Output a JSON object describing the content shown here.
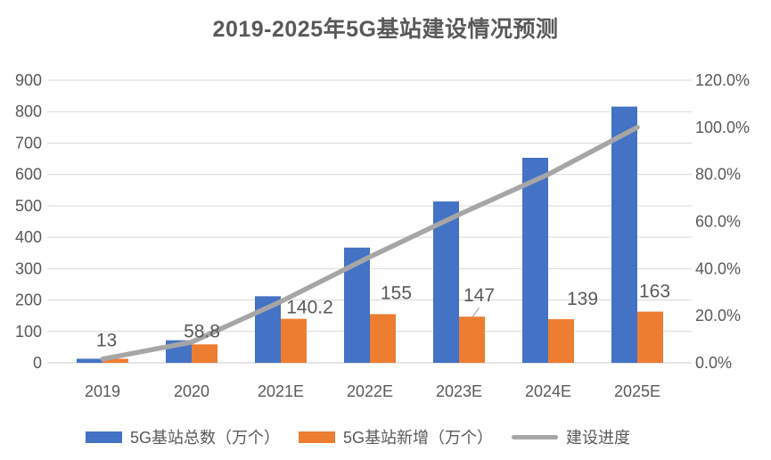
{
  "chart_data": {
    "type": "combo",
    "title": "2019-2025年5G基站建设情况预测",
    "categories": [
      "2019",
      "2020",
      "2021E",
      "2022E",
      "2023E",
      "2024E",
      "2025E"
    ],
    "series": [
      {
        "name": "5G基站总数（万个）",
        "type": "bar",
        "axis": "left",
        "color": "#4472C4",
        "values": [
          13,
          71.8,
          212,
          367,
          514,
          653,
          816
        ]
      },
      {
        "name": "5G基站新增（万个）",
        "type": "bar",
        "axis": "left",
        "color": "#ED7D31",
        "values": [
          13,
          58.8,
          140.2,
          155,
          147,
          139,
          163
        ],
        "data_labels": [
          "13",
          "58.8",
          "140.2",
          "155",
          "147",
          "139",
          "163"
        ]
      },
      {
        "name": "建设进度",
        "type": "line",
        "axis": "right",
        "color": "#A6A6A6",
        "values": [
          1.6,
          8.8,
          26.0,
          45.0,
          63.0,
          80.0,
          100.0
        ]
      }
    ],
    "left_axis": {
      "min": 0,
      "max": 900,
      "tick_values": [
        0,
        100,
        200,
        300,
        400,
        500,
        600,
        700,
        800,
        900
      ],
      "tick_labels": [
        "0",
        "100",
        "200",
        "300",
        "400",
        "500",
        "600",
        "700",
        "800",
        "900"
      ]
    },
    "right_axis": {
      "min": 0,
      "max": 120,
      "tick_values": [
        0,
        20,
        40,
        60,
        80,
        100,
        120
      ],
      "tick_labels": [
        "0.0%",
        "20.0%",
        "40.0%",
        "60.0%",
        "80.0%",
        "100.0%",
        "120.0%"
      ]
    },
    "grid": true,
    "legend_position": "bottom",
    "colors": {
      "background": "#FFFFFF",
      "gridline": "#D9D9D9",
      "axis_line": "#CCCCCC",
      "text": "#595959",
      "bar_total": "#4472C4",
      "bar_new": "#ED7D31",
      "progress_line": "#A6A6A6"
    },
    "layout": {
      "label_dx": [
        -10,
        -3,
        18,
        15,
        8,
        24,
        5
      ],
      "label_gap": [
        14,
        8,
        6,
        17,
        17,
        16,
        16
      ],
      "label_leader_index": 4
    }
  }
}
